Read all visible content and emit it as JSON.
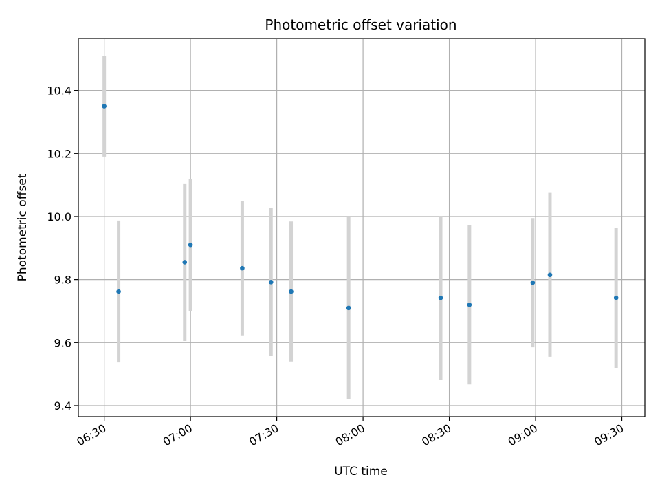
{
  "chart_data": {
    "type": "scatter",
    "title": "Photometric offset variation",
    "xlabel": "UTC time",
    "ylabel": "Photometric offset",
    "x_ticks": [
      {
        "time": "06:30",
        "label": "06:30"
      },
      {
        "time": "07:00",
        "label": "07:00"
      },
      {
        "time": "07:30",
        "label": "07:30"
      },
      {
        "time": "08:00",
        "label": "08:00"
      },
      {
        "time": "08:30",
        "label": "08:30"
      },
      {
        "time": "09:00",
        "label": "09:00"
      },
      {
        "time": "09:30",
        "label": "09:30"
      }
    ],
    "y_ticks": [
      {
        "value": 9.4,
        "label": "9.4"
      },
      {
        "value": 9.6,
        "label": "9.6"
      },
      {
        "value": 9.8,
        "label": "9.8"
      },
      {
        "value": 10.0,
        "label": "10.0"
      },
      {
        "value": 10.2,
        "label": "10.2"
      },
      {
        "value": 10.4,
        "label": "10.4"
      }
    ],
    "xlim": [
      "06:21",
      "09:38"
    ],
    "ylim": [
      9.365,
      10.565
    ],
    "grid": true,
    "point_color": "#1f77b4",
    "errorbar_color": "#d3d3d3",
    "points": [
      {
        "time": "06:30",
        "y": 10.35,
        "err": 0.16
      },
      {
        "time": "06:35",
        "y": 9.762,
        "err": 0.225
      },
      {
        "time": "06:58",
        "y": 9.855,
        "err": 0.25
      },
      {
        "time": "07:00",
        "y": 9.91,
        "err": 0.21
      },
      {
        "time": "07:18",
        "y": 9.836,
        "err": 0.213
      },
      {
        "time": "07:28",
        "y": 9.792,
        "err": 0.235
      },
      {
        "time": "07:35",
        "y": 9.762,
        "err": 0.222
      },
      {
        "time": "07:55",
        "y": 9.71,
        "err": 0.29
      },
      {
        "time": "08:27",
        "y": 9.742,
        "err": 0.26
      },
      {
        "time": "08:37",
        "y": 9.72,
        "err": 0.253
      },
      {
        "time": "08:59",
        "y": 9.79,
        "err": 0.205
      },
      {
        "time": "09:05",
        "y": 9.815,
        "err": 0.26
      },
      {
        "time": "09:28",
        "y": 9.742,
        "err": 0.222
      }
    ]
  }
}
